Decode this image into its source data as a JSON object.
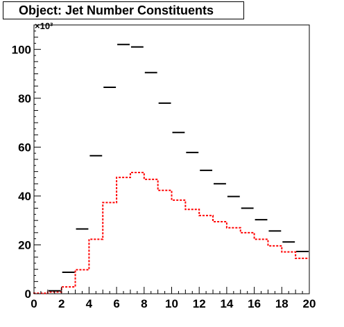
{
  "chart_data": {
    "type": "histogram",
    "title": "Object: Jet Number Constituents",
    "xlabel": "",
    "ylabel": "",
    "y_multiplier_label": "×10³",
    "xlim": [
      0,
      20
    ],
    "ylim": [
      0,
      110
    ],
    "x_ticks": [
      0,
      2,
      4,
      6,
      8,
      10,
      12,
      14,
      16,
      18,
      20
    ],
    "y_ticks": [
      0,
      20,
      40,
      60,
      80,
      100
    ],
    "bin_edges": [
      0,
      1,
      2,
      3,
      4,
      5,
      6,
      7,
      8,
      9,
      10,
      11,
      12,
      13,
      14,
      15,
      16,
      17,
      18,
      19,
      20
    ],
    "series": [
      {
        "style": "markers",
        "color": "#000000",
        "values": [
          0,
          1.2,
          8.8,
          26.5,
          56.5,
          84.5,
          102,
          101,
          90.5,
          78,
          66,
          57.8,
          50.5,
          45,
          39.8,
          35,
          30.3,
          25.7,
          21.2,
          17.3
        ]
      },
      {
        "style": "step",
        "color": "#ff0000",
        "values": [
          0.2,
          0.7,
          2.8,
          9.8,
          22.3,
          37.3,
          47.6,
          49.6,
          46.8,
          42.3,
          38.3,
          34.5,
          32,
          29.5,
          27,
          25,
          22.3,
          19.6,
          17.1,
          14.5
        ]
      }
    ]
  }
}
